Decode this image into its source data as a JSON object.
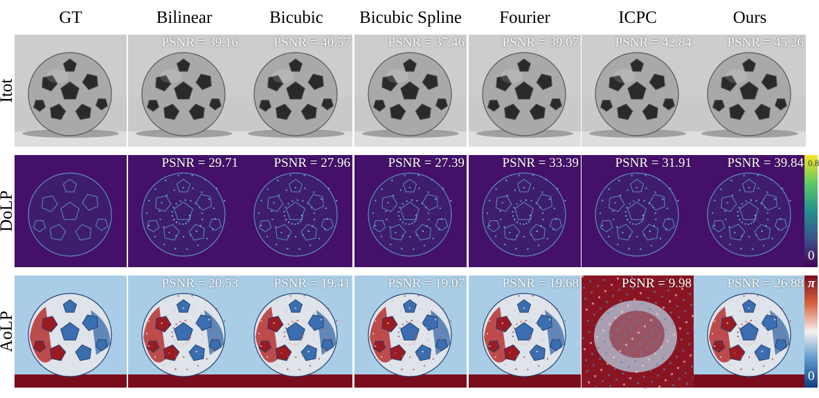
{
  "columns": [
    "GT",
    "Bilinear",
    "Bicubic",
    "Bicubic Spline",
    "Fourier",
    "ICPC",
    "Ours"
  ],
  "rows": [
    {
      "label": "Itot",
      "colormap": "gray",
      "psnr": [
        "",
        "PSNR = 39.16",
        "PSNR = 40.57",
        "PSNR = 37.46",
        "PSNR = 39.07",
        "PSNR = 42.84",
        "PSNR = 45.26"
      ],
      "colorbar": null
    },
    {
      "label": "DoLP",
      "colormap": "viridis",
      "psnr": [
        "",
        "PSNR = 29.71",
        "PSNR = 27.96",
        "PSNR = 27.39",
        "PSNR = 33.39",
        "PSNR = 31.91",
        "PSNR = 39.84"
      ],
      "colorbar": {
        "top": "0.8",
        "bottom": "0",
        "colors": [
          "#f7e623",
          "#5ec962",
          "#21918c",
          "#3b528b",
          "#440154"
        ]
      }
    },
    {
      "label": "AoLP",
      "colormap": "diverging",
      "psnr": [
        "",
        "PSNR = 20.53",
        "PSNR = 19.41",
        "PSNR = 19.07",
        "PSNR = 19.68",
        "PSNR = 9.98",
        "PSNR = 26.88"
      ],
      "colorbar": {
        "top": "π",
        "bottom": "0",
        "colors": [
          "#7a0d1c",
          "#d8623e",
          "#f5f0ee",
          "#5a95cc",
          "#123f7e"
        ]
      }
    }
  ]
}
